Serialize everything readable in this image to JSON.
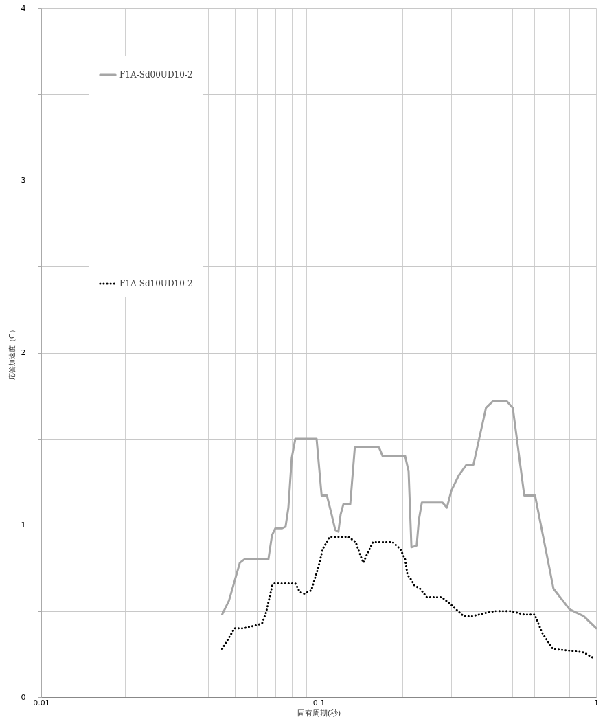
{
  "chart_data": {
    "type": "line",
    "xlabel": "固有周期(秒)",
    "ylabel": "応答加速度（G）",
    "log": "x",
    "grid": true,
    "legend": "top left",
    "xlim": [
      0.01,
      1
    ],
    "xticks": [
      0.01,
      {
        "value": 0.02,
        "label": null
      },
      {
        "value": 0.03,
        "label": null
      },
      {
        "value": 0.04,
        "label": null
      },
      {
        "value": 0.05,
        "label": null
      },
      {
        "value": 0.06,
        "label": null
      },
      {
        "value": 0.07,
        "label": null
      },
      {
        "value": 0.08,
        "label": null
      },
      {
        "value": 0.09,
        "label": null
      },
      0.1,
      {
        "value": 0.2,
        "label": null
      },
      {
        "value": 0.3,
        "label": null
      },
      {
        "value": 0.4,
        "label": null
      },
      {
        "value": 0.5,
        "label": null
      },
      {
        "value": 0.6,
        "label": null
      },
      {
        "value": 0.7,
        "label": null
      },
      {
        "value": 0.8,
        "label": null
      },
      {
        "value": 0.9,
        "label": null
      },
      1
    ],
    "ylim": [
      0,
      4
    ],
    "yticks": [
      0,
      {
        "value": 0.5,
        "label": null
      },
      1,
      {
        "value": 1.5,
        "label": null
      },
      2,
      {
        "value": 2.5,
        "label": null
      },
      3,
      {
        "value": 3.5,
        "label": null
      },
      4
    ],
    "series": [
      {
        "name": "F1A-Sd00UD10-2",
        "color": "#a6a6a6",
        "line_style": "solid",
        "x": [
          0.0449,
          0.0475,
          0.052,
          0.054,
          0.0659,
          0.0679,
          0.0698,
          0.0739,
          0.076,
          0.0778,
          0.08,
          0.0824,
          0.0983,
          0.1025,
          0.1071,
          0.1106,
          0.1148,
          0.1178,
          0.12,
          0.1228,
          0.13,
          0.135,
          0.165,
          0.17,
          0.205,
          0.211,
          0.216,
          0.2256,
          0.2298,
          0.2355,
          0.2795,
          0.29,
          0.301,
          0.3206,
          0.3414,
          0.3614,
          0.401,
          0.426,
          0.4755,
          0.501,
          0.551,
          0.6026,
          0.702,
          0.802,
          0.902,
          1
        ],
        "values": [
          0.48,
          0.56,
          0.78,
          0.8,
          0.8,
          0.94,
          0.98,
          0.98,
          0.99,
          1.1,
          1.39,
          1.5,
          1.5,
          1.17,
          1.17,
          1.08,
          0.97,
          0.96,
          1.06,
          1.12,
          1.12,
          1.45,
          1.45,
          1.4,
          1.4,
          1.31,
          0.87,
          0.88,
          1.03,
          1.13,
          1.13,
          1.1,
          1.2,
          1.29,
          1.35,
          1.35,
          1.68,
          1.72,
          1.72,
          1.68,
          1.17,
          1.17,
          0.63,
          0.51,
          0.47,
          0.4
        ]
      },
      {
        "name": "F1A-Sd10UD10-2",
        "color": "#000000",
        "line_style": "dotted",
        "x": [
          0.0449,
          0.0498,
          0.0537,
          0.0605,
          0.0626,
          0.0646,
          0.0681,
          0.0694,
          0.0824,
          0.0856,
          0.0886,
          0.0941,
          0.0996,
          0.1035,
          0.1096,
          0.128,
          0.136,
          0.1416,
          0.145,
          0.1485,
          0.157,
          0.1847,
          0.197,
          0.205,
          0.209,
          0.216,
          0.221,
          0.232,
          0.2455,
          0.278,
          0.303,
          0.333,
          0.359,
          0.403,
          0.435,
          0.491,
          0.548,
          0.6,
          0.641,
          0.698,
          0.805,
          0.902,
          0.973
        ],
        "values": [
          0.28,
          0.4,
          0.4,
          0.42,
          0.43,
          0.49,
          0.65,
          0.66,
          0.66,
          0.61,
          0.6,
          0.62,
          0.75,
          0.86,
          0.93,
          0.93,
          0.9,
          0.82,
          0.78,
          0.82,
          0.9,
          0.9,
          0.86,
          0.8,
          0.71,
          0.68,
          0.65,
          0.63,
          0.58,
          0.58,
          0.53,
          0.47,
          0.47,
          0.49,
          0.5,
          0.5,
          0.48,
          0.48,
          0.37,
          0.28,
          0.27,
          0.26,
          0.23
        ]
      }
    ]
  }
}
